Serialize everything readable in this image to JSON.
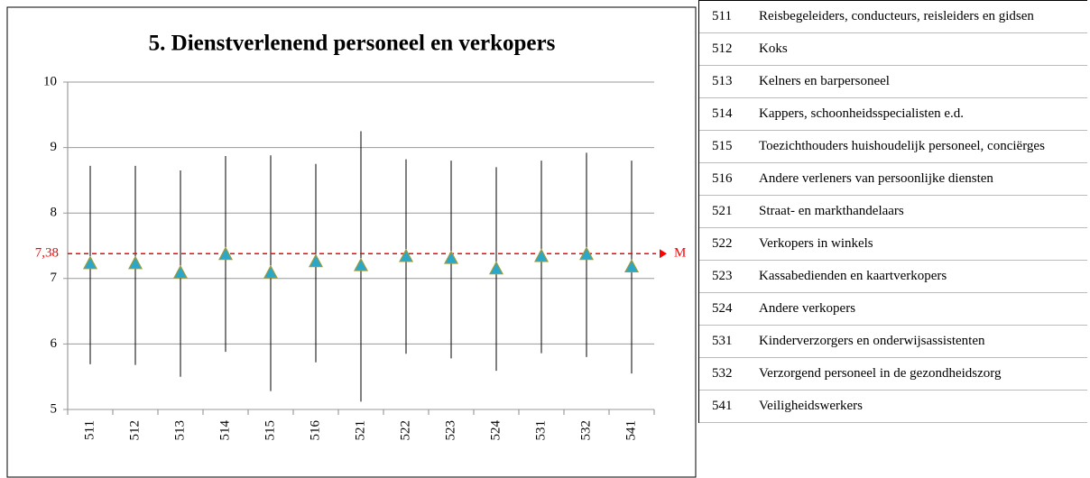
{
  "chart_data": {
    "type": "errorbar",
    "title": "5. Dienstverlenend personeel en verkopers",
    "categories": [
      "511",
      "512",
      "513",
      "514",
      "515",
      "516",
      "521",
      "522",
      "523",
      "524",
      "531",
      "532",
      "541"
    ],
    "series": [
      {
        "color": "#2aa7c9",
        "values": [
          7.22,
          7.22,
          7.08,
          7.36,
          7.08,
          7.25,
          7.19,
          7.33,
          7.3,
          7.14,
          7.33,
          7.36,
          7.17
        ],
        "high": [
          8.72,
          8.72,
          8.65,
          8.87,
          8.88,
          8.75,
          9.25,
          8.82,
          8.8,
          8.7,
          8.8,
          8.92,
          8.8
        ],
        "low": [
          5.69,
          5.68,
          5.5,
          5.88,
          5.28,
          5.72,
          5.12,
          5.85,
          5.78,
          5.59,
          5.86,
          5.8,
          5.55
        ]
      }
    ],
    "ylim": [
      5,
      10
    ],
    "yticks": [
      5,
      6,
      7,
      8,
      9,
      10
    ],
    "grid": true,
    "reference_line": {
      "value": 7.38,
      "label": "7,38",
      "name": "M",
      "color": "#ff0000"
    }
  },
  "legend_table": {
    "rows": [
      [
        "511",
        "Reisbegeleiders, conducteurs, reisleiders en gidsen"
      ],
      [
        "512",
        "Koks"
      ],
      [
        "513",
        "Kelners en barpersoneel"
      ],
      [
        "514",
        "Kappers, schoonheidsspecialisten e.d."
      ],
      [
        "515",
        "Toezichthouders huishoudelijk personeel, conciërges"
      ],
      [
        "516",
        "Andere verleners van persoonlijke diensten"
      ],
      [
        "521",
        "Straat- en markthandelaars"
      ],
      [
        "522",
        "Verkopers in winkels"
      ],
      [
        "523",
        "Kassabedienden en kaartverkopers"
      ],
      [
        "524",
        "Andere verkopers"
      ],
      [
        "531",
        "Kinderverzorgers en onderwijsassistenten"
      ],
      [
        "532",
        "Verzorgend personeel in de gezondheidszorg"
      ],
      [
        "541",
        "Veiligheidswerkers"
      ]
    ]
  }
}
